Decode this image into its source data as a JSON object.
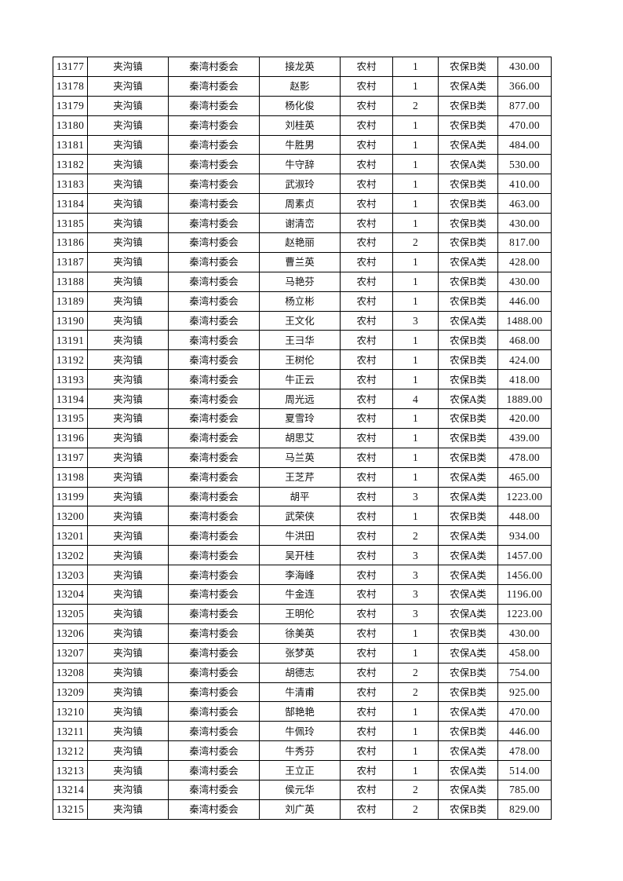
{
  "table": {
    "rows": [
      [
        "13177",
        "夹沟镇",
        "秦湾村委会",
        "接龙英",
        "农村",
        "1",
        "农保B类",
        "430.00"
      ],
      [
        "13178",
        "夹沟镇",
        "秦湾村委会",
        "赵影",
        "农村",
        "1",
        "农保A类",
        "366.00"
      ],
      [
        "13179",
        "夹沟镇",
        "秦湾村委会",
        "杨化俊",
        "农村",
        "2",
        "农保B类",
        "877.00"
      ],
      [
        "13180",
        "夹沟镇",
        "秦湾村委会",
        "刘桂英",
        "农村",
        "1",
        "农保B类",
        "470.00"
      ],
      [
        "13181",
        "夹沟镇",
        "秦湾村委会",
        "牛胜男",
        "农村",
        "1",
        "农保A类",
        "484.00"
      ],
      [
        "13182",
        "夹沟镇",
        "秦湾村委会",
        "牛守辞",
        "农村",
        "1",
        "农保A类",
        "530.00"
      ],
      [
        "13183",
        "夹沟镇",
        "秦湾村委会",
        "武淑玲",
        "农村",
        "1",
        "农保B类",
        "410.00"
      ],
      [
        "13184",
        "夹沟镇",
        "秦湾村委会",
        "周素贞",
        "农村",
        "1",
        "农保B类",
        "463.00"
      ],
      [
        "13185",
        "夹沟镇",
        "秦湾村委会",
        "谢清峦",
        "农村",
        "1",
        "农保B类",
        "430.00"
      ],
      [
        "13186",
        "夹沟镇",
        "秦湾村委会",
        "赵艳丽",
        "农村",
        "2",
        "农保B类",
        "817.00"
      ],
      [
        "13187",
        "夹沟镇",
        "秦湾村委会",
        "曹兰英",
        "农村",
        "1",
        "农保A类",
        "428.00"
      ],
      [
        "13188",
        "夹沟镇",
        "秦湾村委会",
        "马艳芬",
        "农村",
        "1",
        "农保B类",
        "430.00"
      ],
      [
        "13189",
        "夹沟镇",
        "秦湾村委会",
        "杨立彬",
        "农村",
        "1",
        "农保B类",
        "446.00"
      ],
      [
        "13190",
        "夹沟镇",
        "秦湾村委会",
        "王文化",
        "农村",
        "3",
        "农保A类",
        "1488.00"
      ],
      [
        "13191",
        "夹沟镇",
        "秦湾村委会",
        "王彐华",
        "农村",
        "1",
        "农保B类",
        "468.00"
      ],
      [
        "13192",
        "夹沟镇",
        "秦湾村委会",
        "王树伦",
        "农村",
        "1",
        "农保B类",
        "424.00"
      ],
      [
        "13193",
        "夹沟镇",
        "秦湾村委会",
        "牛正云",
        "农村",
        "1",
        "农保B类",
        "418.00"
      ],
      [
        "13194",
        "夹沟镇",
        "秦湾村委会",
        "周光远",
        "农村",
        "4",
        "农保A类",
        "1889.00"
      ],
      [
        "13195",
        "夹沟镇",
        "秦湾村委会",
        "夏雪玲",
        "农村",
        "1",
        "农保B类",
        "420.00"
      ],
      [
        "13196",
        "夹沟镇",
        "秦湾村委会",
        "胡思艾",
        "农村",
        "1",
        "农保B类",
        "439.00"
      ],
      [
        "13197",
        "夹沟镇",
        "秦湾村委会",
        "马兰英",
        "农村",
        "1",
        "农保B类",
        "478.00"
      ],
      [
        "13198",
        "夹沟镇",
        "秦湾村委会",
        "王芝芹",
        "农村",
        "1",
        "农保A类",
        "465.00"
      ],
      [
        "13199",
        "夹沟镇",
        "秦湾村委会",
        "胡平",
        "农村",
        "3",
        "农保A类",
        "1223.00"
      ],
      [
        "13200",
        "夹沟镇",
        "秦湾村委会",
        "武荣侠",
        "农村",
        "1",
        "农保B类",
        "448.00"
      ],
      [
        "13201",
        "夹沟镇",
        "秦湾村委会",
        "牛洪田",
        "农村",
        "2",
        "农保A类",
        "934.00"
      ],
      [
        "13202",
        "夹沟镇",
        "秦湾村委会",
        "吴开桂",
        "农村",
        "3",
        "农保A类",
        "1457.00"
      ],
      [
        "13203",
        "夹沟镇",
        "秦湾村委会",
        "李海峰",
        "农村",
        "3",
        "农保A类",
        "1456.00"
      ],
      [
        "13204",
        "夹沟镇",
        "秦湾村委会",
        "牛金连",
        "农村",
        "3",
        "农保A类",
        "1196.00"
      ],
      [
        "13205",
        "夹沟镇",
        "秦湾村委会",
        "王明伦",
        "农村",
        "3",
        "农保A类",
        "1223.00"
      ],
      [
        "13206",
        "夹沟镇",
        "秦湾村委会",
        "徐美英",
        "农村",
        "1",
        "农保B类",
        "430.00"
      ],
      [
        "13207",
        "夹沟镇",
        "秦湾村委会",
        "张梦英",
        "农村",
        "1",
        "农保A类",
        "458.00"
      ],
      [
        "13208",
        "夹沟镇",
        "秦湾村委会",
        "胡德志",
        "农村",
        "2",
        "农保B类",
        "754.00"
      ],
      [
        "13209",
        "夹沟镇",
        "秦湾村委会",
        "牛清甫",
        "农村",
        "2",
        "农保B类",
        "925.00"
      ],
      [
        "13210",
        "夹沟镇",
        "秦湾村委会",
        "郜艳艳",
        "农村",
        "1",
        "农保A类",
        "470.00"
      ],
      [
        "13211",
        "夹沟镇",
        "秦湾村委会",
        "牛佩玲",
        "农村",
        "1",
        "农保B类",
        "446.00"
      ],
      [
        "13212",
        "夹沟镇",
        "秦湾村委会",
        "牛秀芬",
        "农村",
        "1",
        "农保A类",
        "478.00"
      ],
      [
        "13213",
        "夹沟镇",
        "秦湾村委会",
        "王立正",
        "农村",
        "1",
        "农保A类",
        "514.00"
      ],
      [
        "13214",
        "夹沟镇",
        "秦湾村委会",
        "侯元华",
        "农村",
        "2",
        "农保A类",
        "785.00"
      ],
      [
        "13215",
        "夹沟镇",
        "秦湾村委会",
        "刘广英",
        "农村",
        "2",
        "农保B类",
        "829.00"
      ]
    ]
  }
}
